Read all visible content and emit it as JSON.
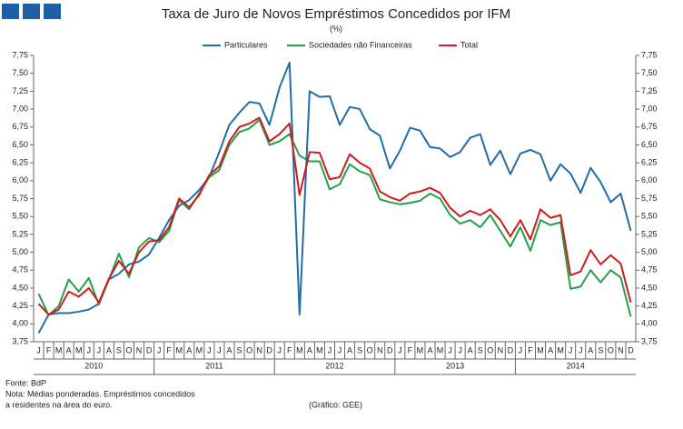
{
  "chart_data": {
    "type": "line",
    "title": "Taxa de Juro de Novos Empréstimos Concedidos por IFM",
    "subtitle": "(%)",
    "categories": [
      "J",
      "F",
      "M",
      "A",
      "M",
      "J",
      "J",
      "A",
      "S",
      "O",
      "N",
      "D",
      "J",
      "F",
      "M",
      "A",
      "M",
      "J",
      "J",
      "A",
      "S",
      "O",
      "N",
      "D",
      "J",
      "F",
      "M",
      "A",
      "M",
      "J",
      "J",
      "A",
      "S",
      "O",
      "N",
      "D",
      "J",
      "F",
      "M",
      "A",
      "M",
      "J",
      "J",
      "A",
      "S",
      "O",
      "N",
      "D",
      "J",
      "F",
      "M",
      "A",
      "M",
      "J",
      "J",
      "A",
      "S",
      "O",
      "N",
      "D"
    ],
    "years": [
      "2010",
      "2011",
      "2012",
      "2013",
      "2014"
    ],
    "series": [
      {
        "name": "Particulares",
        "color": "#1f6ea8",
        "values": [
          3.87,
          4.13,
          4.15,
          4.15,
          4.17,
          4.2,
          4.28,
          4.62,
          4.7,
          4.83,
          4.87,
          4.97,
          5.2,
          5.45,
          5.65,
          5.73,
          5.87,
          6.05,
          6.4,
          6.78,
          6.95,
          7.1,
          7.08,
          6.78,
          7.3,
          7.65,
          4.13,
          7.25,
          7.17,
          7.18,
          6.78,
          7.03,
          7.0,
          6.72,
          6.63,
          6.17,
          6.42,
          6.74,
          6.7,
          6.47,
          6.45,
          6.33,
          6.4,
          6.6,
          6.65,
          6.22,
          6.42,
          6.09,
          6.38,
          6.43,
          6.37,
          6.0,
          6.23,
          6.1,
          5.83,
          6.18,
          5.98,
          5.7,
          5.82,
          5.3
        ]
      },
      {
        "name": "Sociedades não Financeiras",
        "color": "#23a04a",
        "values": [
          4.42,
          4.12,
          4.25,
          4.62,
          4.45,
          4.64,
          4.27,
          4.62,
          4.98,
          4.65,
          5.07,
          5.2,
          5.14,
          5.3,
          5.73,
          5.6,
          5.82,
          6.05,
          6.15,
          6.5,
          6.68,
          6.73,
          6.85,
          6.5,
          6.55,
          6.65,
          6.35,
          6.27,
          6.27,
          5.88,
          5.95,
          6.23,
          6.13,
          6.08,
          5.74,
          5.7,
          5.67,
          5.69,
          5.72,
          5.82,
          5.75,
          5.52,
          5.4,
          5.45,
          5.35,
          5.52,
          5.3,
          5.08,
          5.35,
          5.02,
          5.45,
          5.38,
          5.42,
          4.49,
          4.52,
          4.75,
          4.58,
          4.75,
          4.65,
          4.1
        ]
      },
      {
        "name": "Total",
        "color": "#d01c1c",
        "values": [
          4.28,
          4.13,
          4.2,
          4.45,
          4.38,
          4.5,
          4.3,
          4.63,
          4.88,
          4.7,
          5.0,
          5.15,
          5.17,
          5.35,
          5.75,
          5.63,
          5.8,
          6.08,
          6.2,
          6.55,
          6.75,
          6.8,
          6.88,
          6.55,
          6.65,
          6.8,
          5.8,
          6.4,
          6.39,
          6.02,
          6.05,
          6.37,
          6.25,
          6.17,
          5.85,
          5.77,
          5.72,
          5.82,
          5.85,
          5.9,
          5.83,
          5.62,
          5.5,
          5.58,
          5.52,
          5.6,
          5.45,
          5.22,
          5.45,
          5.18,
          5.6,
          5.48,
          5.52,
          4.68,
          4.73,
          5.03,
          4.83,
          4.96,
          4.84,
          4.3
        ]
      }
    ],
    "ylim": [
      3.75,
      7.75
    ],
    "yticks": [
      {
        "value": 3.75,
        "label": "3,75"
      },
      {
        "value": 4,
        "label": "4,00"
      },
      {
        "value": 4.25,
        "label": "4,25"
      },
      {
        "value": 4.5,
        "label": "4,50"
      },
      {
        "value": 4.75,
        "label": "4,75"
      },
      {
        "value": 5,
        "label": "5,00"
      },
      {
        "value": 5.25,
        "label": "5,25"
      },
      {
        "value": 5.5,
        "label": "5,50"
      },
      {
        "value": 5.75,
        "label": "5,75"
      },
      {
        "value": 6,
        "label": "6,00"
      },
      {
        "value": 6.25,
        "label": "6,25"
      },
      {
        "value": 6.5,
        "label": "6,50"
      },
      {
        "value": 6.75,
        "label": "6,75"
      },
      {
        "value": 7,
        "label": "7,00"
      },
      {
        "value": 7.25,
        "label": "7,25"
      },
      {
        "value": 7.5,
        "label": "7,50"
      },
      {
        "value": 7.75,
        "label": "7,75"
      }
    ],
    "grid": false,
    "legend": "top",
    "source": "Fonte: BdP",
    "note_line1": "Nota: Médias ponderadas. Empréstimos concedidos",
    "note_line2": "a residentes na área do euro.",
    "credit": "(Gráfico: GEE)"
  }
}
